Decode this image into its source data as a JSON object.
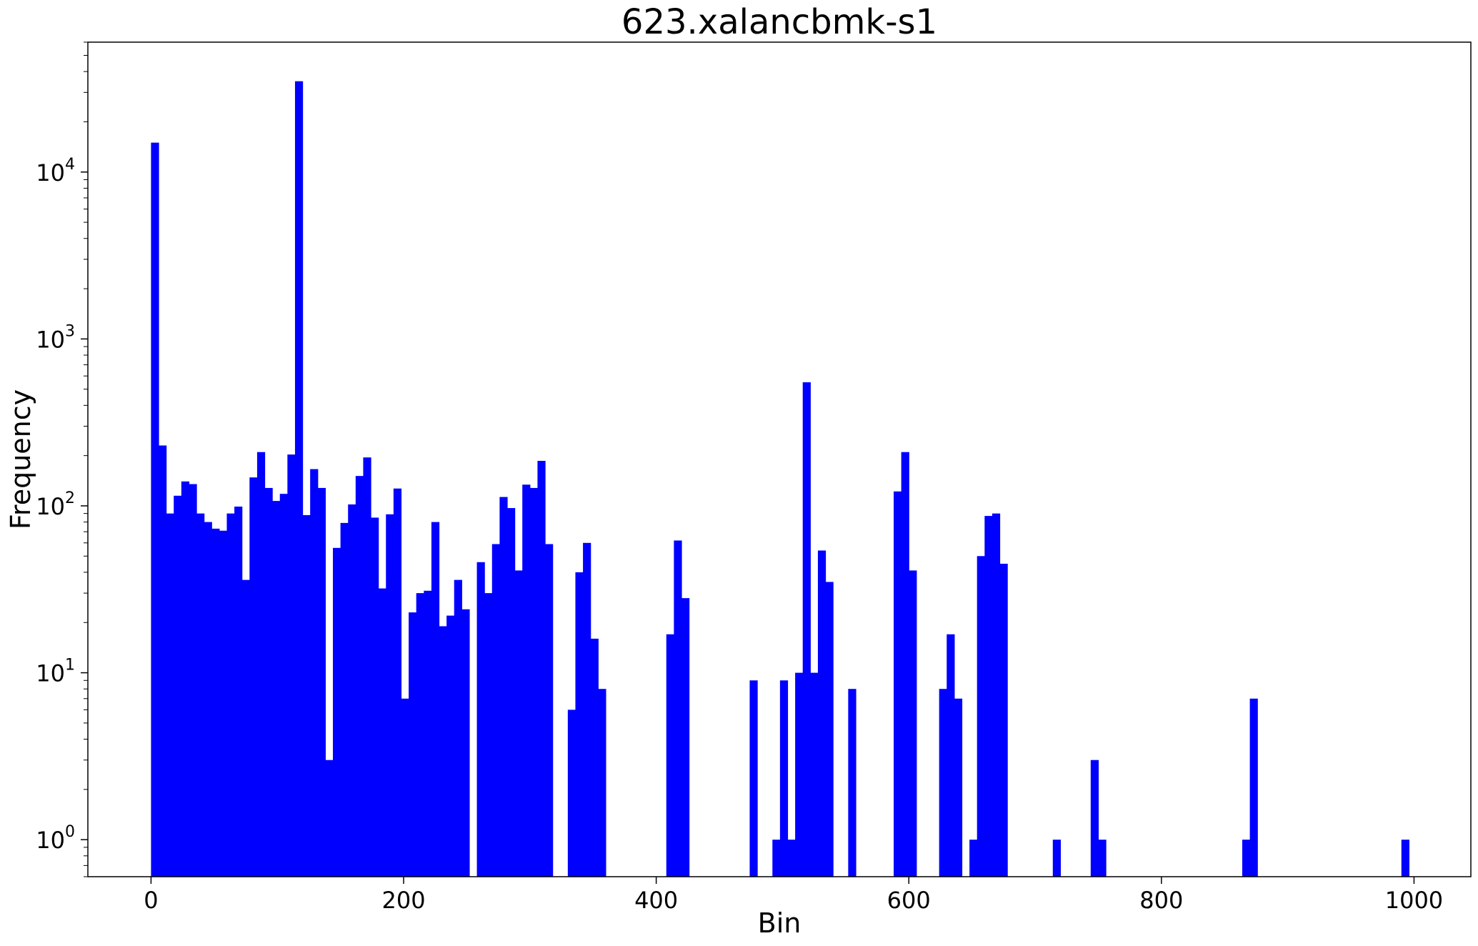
{
  "chart_data": {
    "type": "bar",
    "title": "623.xalancbmk-s1",
    "xlabel": "Bin",
    "ylabel": "Frequency",
    "yscale": "log",
    "xlim": [
      -50,
      1045
    ],
    "ylim": [
      0.6,
      60000
    ],
    "x_ticks": [
      {
        "value": 0,
        "label": "0"
      },
      {
        "value": 200,
        "label": "200"
      },
      {
        "value": 400,
        "label": "400"
      },
      {
        "value": 600,
        "label": "600"
      },
      {
        "value": 800,
        "label": "800"
      },
      {
        "value": 1000,
        "label": "1000"
      }
    ],
    "y_ticks": [
      {
        "value": 1,
        "base": "10",
        "exp": "0"
      },
      {
        "value": 10,
        "base": "10",
        "exp": "1"
      },
      {
        "value": 100,
        "base": "10",
        "exp": "2"
      },
      {
        "value": 1000,
        "base": "10",
        "exp": "3"
      },
      {
        "value": 10000,
        "base": "10",
        "exp": "4"
      }
    ],
    "bar_color": "#0000ff",
    "bin_width": 6,
    "bins": [
      {
        "x": 0,
        "v": 15000
      },
      {
        "x": 6,
        "v": 230
      },
      {
        "x": 12,
        "v": 90
      },
      {
        "x": 18,
        "v": 115
      },
      {
        "x": 24,
        "v": 140
      },
      {
        "x": 30,
        "v": 135
      },
      {
        "x": 36,
        "v": 90
      },
      {
        "x": 42,
        "v": 80
      },
      {
        "x": 48,
        "v": 73
      },
      {
        "x": 54,
        "v": 71
      },
      {
        "x": 60,
        "v": 90
      },
      {
        "x": 66,
        "v": 99
      },
      {
        "x": 72,
        "v": 36
      },
      {
        "x": 78,
        "v": 148
      },
      {
        "x": 84,
        "v": 210
      },
      {
        "x": 90,
        "v": 128
      },
      {
        "x": 96,
        "v": 107
      },
      {
        "x": 102,
        "v": 118
      },
      {
        "x": 108,
        "v": 203
      },
      {
        "x": 114,
        "v": 35000
      },
      {
        "x": 120,
        "v": 88
      },
      {
        "x": 126,
        "v": 166
      },
      {
        "x": 132,
        "v": 128
      },
      {
        "x": 138,
        "v": 3
      },
      {
        "x": 144,
        "v": 56
      },
      {
        "x": 150,
        "v": 79
      },
      {
        "x": 156,
        "v": 102
      },
      {
        "x": 162,
        "v": 151
      },
      {
        "x": 168,
        "v": 195
      },
      {
        "x": 174,
        "v": 85
      },
      {
        "x": 180,
        "v": 32
      },
      {
        "x": 186,
        "v": 89
      },
      {
        "x": 192,
        "v": 127
      },
      {
        "x": 198,
        "v": 7
      },
      {
        "x": 204,
        "v": 23
      },
      {
        "x": 210,
        "v": 30
      },
      {
        "x": 216,
        "v": 31
      },
      {
        "x": 222,
        "v": 80
      },
      {
        "x": 228,
        "v": 19
      },
      {
        "x": 234,
        "v": 22
      },
      {
        "x": 240,
        "v": 36
      },
      {
        "x": 246,
        "v": 24
      },
      {
        "x": 258,
        "v": 46
      },
      {
        "x": 264,
        "v": 30
      },
      {
        "x": 270,
        "v": 59
      },
      {
        "x": 276,
        "v": 113
      },
      {
        "x": 282,
        "v": 97
      },
      {
        "x": 288,
        "v": 41
      },
      {
        "x": 294,
        "v": 134
      },
      {
        "x": 300,
        "v": 128
      },
      {
        "x": 306,
        "v": 186
      },
      {
        "x": 312,
        "v": 59
      },
      {
        "x": 330,
        "v": 6
      },
      {
        "x": 336,
        "v": 40
      },
      {
        "x": 342,
        "v": 60
      },
      {
        "x": 348,
        "v": 16
      },
      {
        "x": 354,
        "v": 8
      },
      {
        "x": 408,
        "v": 17
      },
      {
        "x": 414,
        "v": 62
      },
      {
        "x": 420,
        "v": 28
      },
      {
        "x": 474,
        "v": 9
      },
      {
        "x": 492,
        "v": 1
      },
      {
        "x": 498,
        "v": 9
      },
      {
        "x": 504,
        "v": 1
      },
      {
        "x": 510,
        "v": 10
      },
      {
        "x": 516,
        "v": 550
      },
      {
        "x": 522,
        "v": 10
      },
      {
        "x": 528,
        "v": 54
      },
      {
        "x": 534,
        "v": 35
      },
      {
        "x": 552,
        "v": 8
      },
      {
        "x": 588,
        "v": 122
      },
      {
        "x": 594,
        "v": 210
      },
      {
        "x": 600,
        "v": 41
      },
      {
        "x": 624,
        "v": 8
      },
      {
        "x": 630,
        "v": 17
      },
      {
        "x": 636,
        "v": 7
      },
      {
        "x": 648,
        "v": 1
      },
      {
        "x": 654,
        "v": 50
      },
      {
        "x": 660,
        "v": 87
      },
      {
        "x": 666,
        "v": 90
      },
      {
        "x": 672,
        "v": 45
      },
      {
        "x": 714,
        "v": 1
      },
      {
        "x": 744,
        "v": 3
      },
      {
        "x": 750,
        "v": 1
      },
      {
        "x": 864,
        "v": 1
      },
      {
        "x": 870,
        "v": 7
      },
      {
        "x": 990,
        "v": 1
      }
    ]
  }
}
